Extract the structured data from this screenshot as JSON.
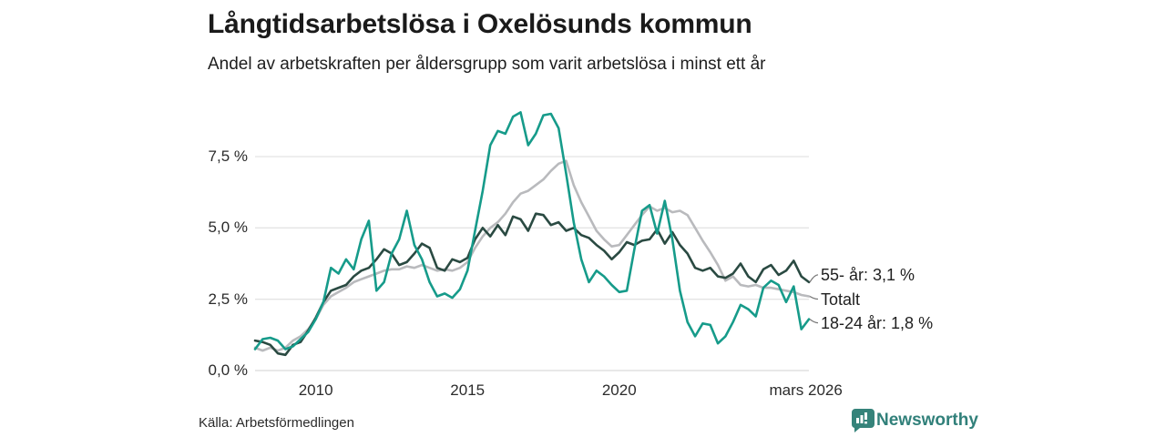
{
  "header": {
    "title": "Långtidsarbetslösa i Oxelösunds kommun",
    "subtitle": "Andel av arbetskraften per åldersgrupp som varit arbetslösa i minst ett år"
  },
  "footer": {
    "source": "Källa: Arbetsförmedlingen",
    "brand": "Newsworthy"
  },
  "colors": {
    "series_18_24": "#169b8a",
    "series_totalt": "#b9babd",
    "series_55": "#2a4a42",
    "grid": "#e4e4e4",
    "baseline": "#d9d9d9",
    "connector": "#777777",
    "brand_teal": "#35837a",
    "text": "#1c1c1c"
  },
  "chart_data": {
    "type": "line",
    "title": "Långtidsarbetslösa i Oxelösunds kommun",
    "subtitle": "Andel av arbetskraften per åldersgrupp som varit arbetslösa i minst ett år",
    "xlabel": "",
    "ylabel": "",
    "grid": "horizontal",
    "legend_position": "end-labels-right",
    "xlim": [
      2008,
      2026.25
    ],
    "ylim": [
      0,
      9.4
    ],
    "yticks": [
      {
        "value": 0.0,
        "label": "0,0 %"
      },
      {
        "value": 2.5,
        "label": "2,5 %"
      },
      {
        "value": 5.0,
        "label": "5,0 %"
      },
      {
        "value": 7.5,
        "label": "7,5 %"
      }
    ],
    "xticks": [
      {
        "value": 2010,
        "label": "2010"
      },
      {
        "value": 2015,
        "label": "2015"
      },
      {
        "value": 2020,
        "label": "2020"
      },
      {
        "value": 2026.15,
        "label": "mars 2026"
      }
    ],
    "x": [
      2008.0,
      2008.25,
      2008.5,
      2008.75,
      2009.0,
      2009.25,
      2009.5,
      2009.75,
      2010.0,
      2010.25,
      2010.5,
      2010.75,
      2011.0,
      2011.25,
      2011.5,
      2011.75,
      2012.0,
      2012.25,
      2012.5,
      2012.75,
      2013.0,
      2013.25,
      2013.5,
      2013.75,
      2014.0,
      2014.25,
      2014.5,
      2014.75,
      2015.0,
      2015.25,
      2015.5,
      2015.75,
      2016.0,
      2016.25,
      2016.5,
      2016.75,
      2017.0,
      2017.25,
      2017.5,
      2017.75,
      2018.0,
      2018.25,
      2018.5,
      2018.75,
      2019.0,
      2019.25,
      2019.5,
      2019.75,
      2020.0,
      2020.25,
      2020.5,
      2020.75,
      2021.0,
      2021.25,
      2021.5,
      2021.75,
      2022.0,
      2022.25,
      2022.5,
      2022.75,
      2023.0,
      2023.25,
      2023.5,
      2023.75,
      2024.0,
      2024.25,
      2024.5,
      2024.75,
      2025.0,
      2025.25,
      2025.5,
      2025.75,
      2026.0,
      2026.25
    ],
    "series": [
      {
        "name": "55- år",
        "end_label": "55- år: 3,1 %",
        "end_value_text": "3,1 %",
        "color": "#2a4a42",
        "values": [
          1.05,
          1.0,
          0.9,
          0.6,
          0.55,
          0.9,
          1.0,
          1.4,
          1.85,
          2.4,
          2.8,
          2.9,
          3.0,
          3.3,
          3.5,
          3.6,
          3.9,
          4.25,
          4.1,
          3.7,
          3.8,
          4.1,
          4.45,
          4.3,
          3.6,
          3.5,
          3.9,
          3.8,
          3.95,
          4.6,
          5.0,
          4.7,
          5.1,
          4.75,
          5.4,
          5.3,
          4.9,
          5.5,
          5.45,
          5.1,
          5.2,
          4.9,
          5.0,
          4.75,
          4.65,
          4.4,
          4.2,
          3.9,
          4.15,
          4.5,
          4.4,
          4.55,
          4.6,
          4.95,
          4.45,
          4.85,
          4.4,
          4.1,
          3.6,
          3.5,
          3.6,
          3.3,
          3.25,
          3.4,
          3.75,
          3.3,
          3.1,
          3.55,
          3.7,
          3.35,
          3.5,
          3.85,
          3.3,
          3.1
        ]
      },
      {
        "name": "Totalt",
        "end_label": "Totalt",
        "end_value_text": "",
        "color": "#b9babd",
        "values": [
          0.8,
          0.7,
          0.8,
          0.7,
          0.8,
          1.05,
          1.2,
          1.45,
          1.8,
          2.3,
          2.6,
          2.75,
          2.9,
          3.1,
          3.2,
          3.3,
          3.4,
          3.5,
          3.55,
          3.55,
          3.65,
          3.6,
          3.7,
          3.6,
          3.5,
          3.55,
          3.5,
          3.6,
          3.8,
          4.3,
          4.7,
          5.0,
          5.2,
          5.5,
          5.9,
          6.2,
          6.3,
          6.5,
          6.7,
          7.0,
          7.25,
          7.35,
          6.5,
          5.9,
          5.4,
          4.9,
          4.6,
          4.35,
          4.4,
          4.75,
          5.1,
          5.45,
          5.75,
          5.6,
          5.7,
          5.55,
          5.6,
          5.45,
          5.0,
          4.55,
          4.15,
          3.7,
          3.15,
          3.3,
          3.0,
          2.95,
          3.0,
          2.9,
          2.9,
          2.85,
          2.8,
          2.75,
          2.65,
          2.6
        ]
      },
      {
        "name": "18-24 år",
        "end_label": "18-24 år: 1,8 %",
        "end_value_text": "1,8 %",
        "color": "#169b8a",
        "values": [
          0.75,
          1.1,
          1.15,
          1.05,
          0.75,
          0.85,
          1.1,
          1.35,
          1.8,
          2.4,
          3.6,
          3.4,
          3.9,
          3.55,
          4.6,
          5.25,
          2.8,
          3.1,
          4.1,
          4.6,
          5.6,
          4.4,
          3.9,
          3.1,
          2.6,
          2.7,
          2.55,
          2.85,
          3.5,
          4.9,
          6.3,
          7.9,
          8.4,
          8.3,
          8.9,
          9.05,
          7.9,
          8.3,
          8.95,
          9.0,
          8.5,
          6.9,
          5.2,
          3.9,
          3.1,
          3.5,
          3.3,
          3.0,
          2.75,
          2.8,
          4.25,
          5.6,
          5.8,
          4.8,
          5.95,
          4.6,
          2.8,
          1.7,
          1.2,
          1.65,
          1.6,
          0.95,
          1.2,
          1.7,
          2.3,
          2.15,
          1.9,
          2.9,
          3.15,
          3.0,
          2.4,
          2.95,
          1.45,
          1.8
        ]
      }
    ]
  }
}
